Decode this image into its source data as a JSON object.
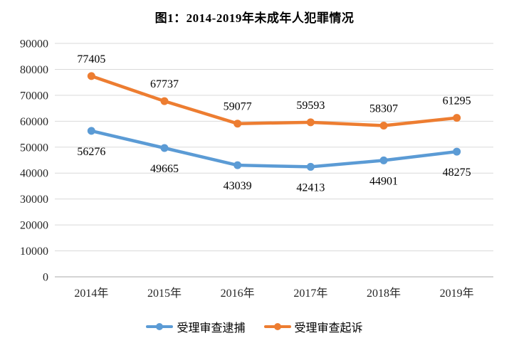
{
  "chart_data": {
    "type": "line",
    "title": "图1：2014-2019年未成年人犯罪情况",
    "categories": [
      "2014年",
      "2015年",
      "2016年",
      "2017年",
      "2018年",
      "2019年"
    ],
    "series": [
      {
        "key": "arrest",
        "name": "受理审查逮捕",
        "color": "#5B9BD5",
        "values": [
          56276,
          49665,
          43039,
          42413,
          44901,
          48275
        ],
        "label_position": "below"
      },
      {
        "key": "prosecution",
        "name": "受理审查起诉",
        "color": "#ED7D31",
        "values": [
          77405,
          67737,
          59077,
          59593,
          58307,
          61295
        ],
        "label_position": "above"
      }
    ],
    "xlabel": "",
    "ylabel": "",
    "ylim": [
      0,
      90000
    ],
    "ytick_step": 10000,
    "grid": true,
    "legend_position": "bottom",
    "colors": {
      "gridline": "#D9D9D9",
      "axis": "#C6C6C6",
      "tick_text": "#262626",
      "data_label_text": "#000000"
    }
  }
}
